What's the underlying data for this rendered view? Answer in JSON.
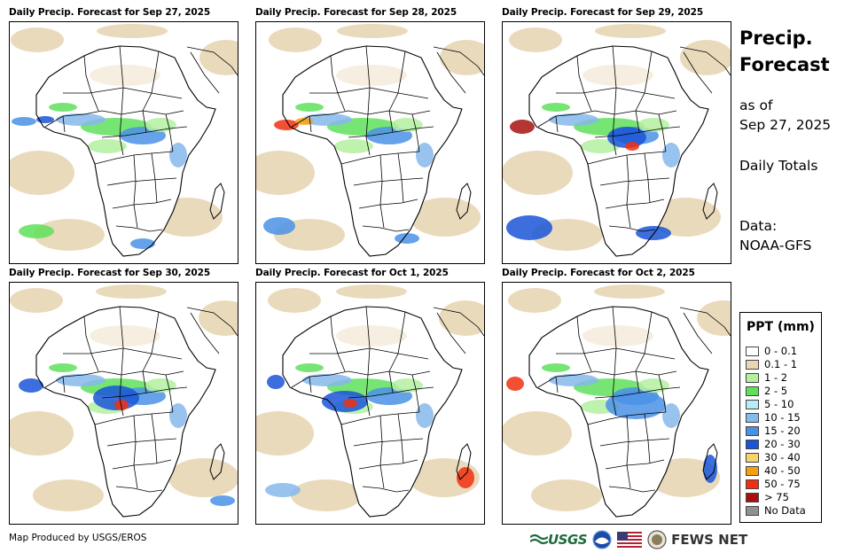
{
  "panels": [
    {
      "title": "Daily Precip. Forecast for Sep 27, 2025"
    },
    {
      "title": "Daily Precip. Forecast for Sep 28, 2025"
    },
    {
      "title": "Daily Precip. Forecast for Sep 29, 2025"
    },
    {
      "title": "Daily Precip. Forecast for Sep 30, 2025"
    },
    {
      "title": "Daily Precip. Forecast for Oct 1, 2025"
    },
    {
      "title": "Daily Precip. Forecast for Oct 2, 2025"
    }
  ],
  "side": {
    "title_line1": "Precip.",
    "title_line2": "Forecast",
    "as_of": "as of",
    "date": "Sep 27, 2025",
    "totals": "Daily Totals",
    "data_label": "Data:",
    "data_source": "NOAA-GFS"
  },
  "legend": {
    "title": "PPT (mm)",
    "items": [
      {
        "label": "0 - 0.1",
        "color": "#ffffff"
      },
      {
        "label": "0.1 - 1",
        "color": "#e8d6b5"
      },
      {
        "label": "1 - 2",
        "color": "#b4f0a0"
      },
      {
        "label": "2 - 5",
        "color": "#5fe05a"
      },
      {
        "label": "5 - 10",
        "color": "#b6ecf5"
      },
      {
        "label": "10 - 15",
        "color": "#86b9ec"
      },
      {
        "label": "15 - 20",
        "color": "#4a92e6"
      },
      {
        "label": "20 - 30",
        "color": "#1a55d8"
      },
      {
        "label": "30 - 40",
        "color": "#f5d46a"
      },
      {
        "label": "40 - 50",
        "color": "#f5a010"
      },
      {
        "label": "50 - 75",
        "color": "#f03010"
      },
      {
        "label": "> 75",
        "color": "#a81010"
      },
      {
        "label": "No Data",
        "color": "#909090"
      }
    ]
  },
  "footer": {
    "credit": "Map Produced by USGS/EROS",
    "usgs": "USGS",
    "fews": "FEWS NET"
  }
}
